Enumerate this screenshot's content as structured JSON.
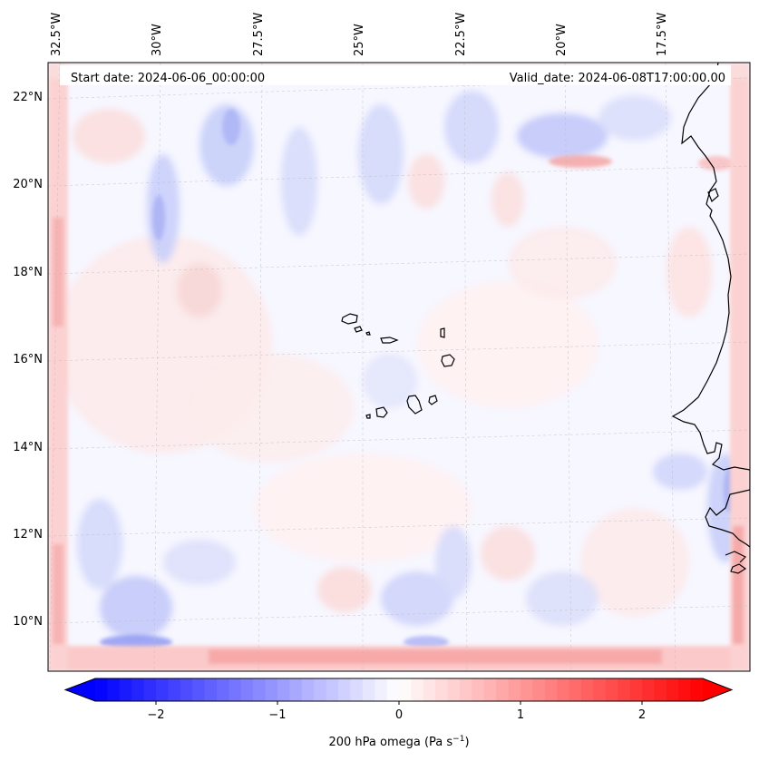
{
  "header": {
    "start_date": "Start date: 2024-06-06_00:00:00",
    "valid_date": "Valid_date: 2024-06-08T17:00:00.00"
  },
  "map": {
    "lon_labels": [
      "32.5°W",
      "30°W",
      "27.5°W",
      "25°W",
      "22.5°W",
      "20°W",
      "17.5°W"
    ],
    "lat_labels": [
      "22°N",
      "20°N",
      "18°N",
      "16°N",
      "14°N",
      "12°N",
      "10°N"
    ]
  },
  "colorbar": {
    "tick_labels": [
      "−2",
      "−1",
      "0",
      "1",
      "2"
    ],
    "label": "200 hPa omega (Pa s",
    "label_sup": "−1",
    "label_end": ")",
    "min": -2.5,
    "max": 2.5
  },
  "colors": {
    "negative": "#0000ff",
    "positive": "#ff0000",
    "neutral": "#ffffff",
    "coast": "#000000",
    "grid": "#bbbbbb"
  }
}
